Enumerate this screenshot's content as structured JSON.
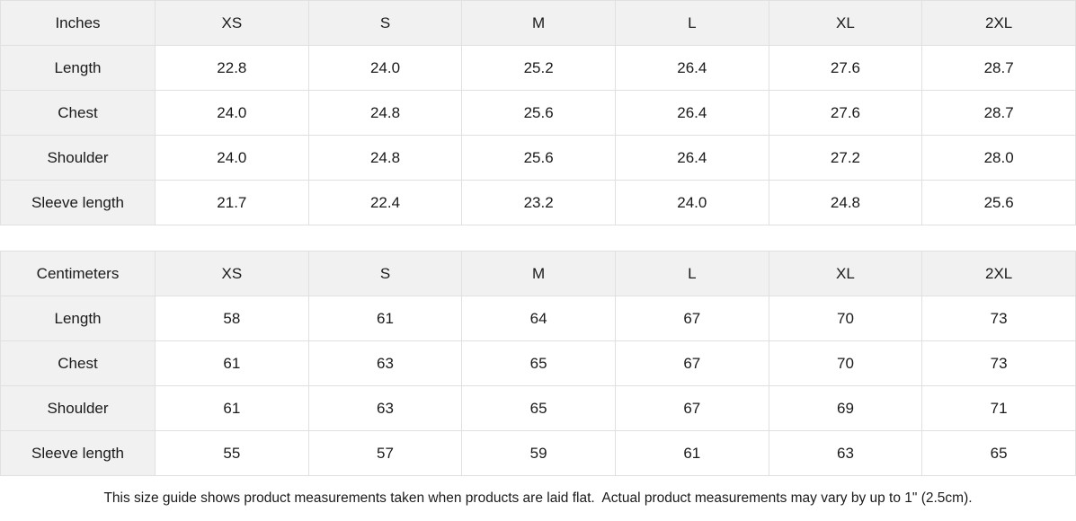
{
  "tables": [
    {
      "unit_label": "Inches",
      "sizes": [
        "XS",
        "S",
        "M",
        "L",
        "XL",
        "2XL"
      ],
      "rows": [
        {
          "label": "Length",
          "values": [
            "22.8",
            "24.0",
            "25.2",
            "26.4",
            "27.6",
            "28.7"
          ]
        },
        {
          "label": "Chest",
          "values": [
            "24.0",
            "24.8",
            "25.6",
            "26.4",
            "27.6",
            "28.7"
          ]
        },
        {
          "label": "Shoulder",
          "values": [
            "24.0",
            "24.8",
            "25.6",
            "26.4",
            "27.2",
            "28.0"
          ]
        },
        {
          "label": "Sleeve length",
          "values": [
            "21.7",
            "22.4",
            "23.2",
            "24.0",
            "24.8",
            "25.6"
          ]
        }
      ]
    },
    {
      "unit_label": "Centimeters",
      "sizes": [
        "XS",
        "S",
        "M",
        "L",
        "XL",
        "2XL"
      ],
      "rows": [
        {
          "label": "Length",
          "values": [
            "58",
            "61",
            "64",
            "67",
            "70",
            "73"
          ]
        },
        {
          "label": "Chest",
          "values": [
            "61",
            "63",
            "65",
            "67",
            "70",
            "73"
          ]
        },
        {
          "label": "Shoulder",
          "values": [
            "61",
            "63",
            "65",
            "67",
            "69",
            "71"
          ]
        },
        {
          "label": "Sleeve length",
          "values": [
            "55",
            "57",
            "59",
            "61",
            "63",
            "65"
          ]
        }
      ]
    }
  ],
  "footer": {
    "note": "This size guide shows product measurements taken when products are laid flat.  Actual product measurements may vary by up to 1\" (2.5cm)."
  },
  "colors": {
    "header_fill": "#f1f1f1",
    "border": "#e0e0e0",
    "text": "#1a1a1a",
    "background": "#ffffff"
  }
}
